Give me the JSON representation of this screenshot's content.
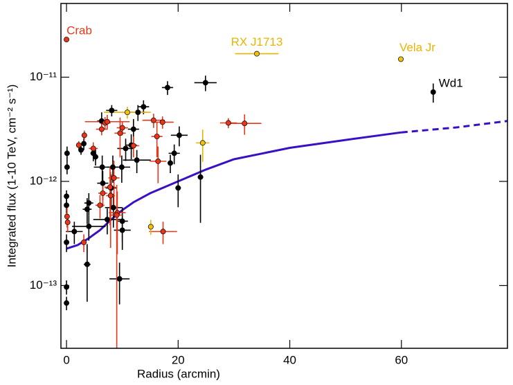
{
  "chart_data": {
    "type": "scatter",
    "xlabel": "Radius (arcmin)",
    "ylabel": "Integrated flux (1-10 TeV, cm⁻² s⁻¹)",
    "xlim": [
      -1,
      79
    ],
    "xticks": [
      0,
      20,
      40,
      60
    ],
    "ylim": [
      2.5e-14,
      5.1e-11
    ],
    "yticks": [
      {
        "value": 1e-13,
        "label": "10⁻¹³"
      },
      {
        "value": 1e-12,
        "label": "10⁻¹²"
      },
      {
        "value": 1e-11,
        "label": "10⁻¹¹"
      }
    ],
    "ylog": true,
    "series": [
      {
        "color": "#000000",
        "x": [
          0.1,
          0.1,
          0,
          0,
          0,
          0,
          0,
          2.6,
          3.1,
          4.0,
          3.7,
          3.7,
          1.4,
          4.0,
          4.8,
          5.2,
          6.3,
          6.4,
          6.5,
          8.1,
          8.3,
          8.0,
          8.4,
          9.5,
          10.0,
          10.0,
          9.9,
          10.6,
          12.0,
          12.8,
          12.6,
          13.8,
          11.6,
          18.1,
          18.6,
          19.3,
          20.2,
          20.0,
          24.9,
          24.0,
          7.3,
          65.7
        ],
        "values": [
          1.86e-12,
          1.37e-12,
          7.2e-13,
          5.9e-13,
          9.7e-14,
          6.8e-14,
          2.6e-13,
          2e-12,
          2.3e-12,
          6.2e-13,
          5.4e-13,
          1.6e-13,
          3.3e-13,
          3.7e-13,
          1.86e-12,
          1.72e-12,
          3.8e-12,
          1.37e-12,
          9.6e-13,
          4.8e-12,
          1.37e-12,
          8.65e-13,
          5.6e-13,
          1.16e-13,
          4.15e-13,
          3.4e-13,
          1.37e-12,
          2.07e-12,
          3.17e-12,
          4.6e-12,
          1.6e-12,
          5.2e-12,
          2.23e-12,
          7.95e-12,
          1.5e-12,
          1.86e-12,
          2.77e-12,
          8.65e-13,
          8.85e-12,
          1.1e-12,
          4.3e-13,
          7.2e-12
        ],
        "xerr": [
          0.2,
          0.2,
          0.2,
          0.2,
          0.2,
          0.2,
          0.2,
          0.3,
          0.3,
          0.8,
          0.8,
          0.6,
          1.5,
          3.0,
          0.5,
          0.5,
          0.8,
          1.5,
          1.0,
          1.0,
          1.0,
          1.0,
          1.5,
          1.8,
          1.0,
          1.5,
          1.5,
          1.5,
          1.0,
          1.5,
          2.5,
          1.0,
          1.0,
          1.0,
          0.5,
          1.0,
          1.5,
          0.5,
          2.0,
          0.5,
          2.5,
          0.2
        ],
        "yerr": [
          3e-13,
          2e-13,
          1e-13,
          1e-13,
          1.5e-14,
          1e-14,
          5e-14,
          2e-13,
          3e-13,
          1.5e-13,
          1.5e-13,
          9e-14,
          8e-14,
          1e-13,
          3e-13,
          3e-13,
          8e-13,
          4e-13,
          3e-13,
          6e-13,
          4e-13,
          3e-13,
          2e-13,
          5e-14,
          1.5e-13,
          1.2e-13,
          4e-13,
          5e-13,
          8e-13,
          8e-13,
          4e-13,
          8e-13,
          6e-13,
          1.2e-12,
          3e-13,
          4e-13,
          6e-13,
          3e-13,
          1.5e-12,
          7e-13,
          1.2e-13,
          1.5e-12
        ]
      },
      {
        "color": "#e8361a",
        "x": [
          0,
          0.1,
          0.2,
          2.2,
          3.2,
          4.8,
          6.3,
          6.9,
          7.3,
          6.0,
          6.5,
          7.8,
          7.9,
          9.1,
          9.0,
          9.6,
          10.0,
          12.0,
          16.2,
          15.6,
          17.2,
          17.3,
          16.4,
          29.0,
          31.9,
          3.1,
          8.5
        ],
        "values": [
          2.3e-11,
          4.6e-13,
          4.05e-13,
          2.23e-12,
          2.77e-12,
          2.07e-12,
          3.17e-12,
          3.64e-12,
          3.74e-12,
          5.9e-13,
          7.7e-13,
          8.8e-13,
          7.3e-13,
          5e-13,
          4.75e-13,
          2.9e-12,
          3.27e-12,
          2.2e-12,
          2.7e-12,
          3.86e-12,
          3.7e-12,
          3.3e-13,
          1.56e-12,
          3.64e-12,
          3.6e-12,
          2.6e-13,
          1.08e-12
        ],
        "xerr": [
          0.1,
          0.2,
          0.2,
          0.3,
          0.3,
          0.8,
          1.0,
          1.0,
          4.0,
          0.8,
          0.8,
          1.0,
          0.8,
          1.5,
          1.0,
          1.0,
          1.0,
          1.0,
          1.0,
          2.0,
          2.0,
          2.5,
          1.5,
          1.5,
          3.0,
          0.5,
          1.0
        ],
        "yerr": [
          1e-12,
          1e-13,
          8e-14,
          2e-13,
          3e-13,
          3e-13,
          4e-13,
          5e-13,
          6e-13,
          1.5e-13,
          2e-13,
          5e-13,
          5e-13,
          3e-13,
          4.5e-13,
          1.2e-12,
          5e-13,
          5e-13,
          1e-12,
          6e-13,
          5e-13,
          8e-14,
          6e-13,
          4e-13,
          8e-13,
          5e-14,
          5e-13
        ]
      },
      {
        "color": "#f2c10f",
        "x": [
          34.1,
          59.9,
          10.9,
          24.4,
          15.1
        ],
        "values": [
          1.68e-11,
          1.49e-11,
          4.6e-12,
          2.34e-12,
          3.67e-13
        ],
        "xerr": [
          3.9,
          0.3,
          4.2,
          1.2,
          0.4
        ],
        "yerr": [
          8e-13,
          5e-13,
          6e-13,
          8e-13,
          6e-14
        ]
      }
    ],
    "curves": [
      {
        "color": "#3b0fc4",
        "dashed": false,
        "x": [
          0,
          2,
          4,
          6,
          8,
          10,
          12,
          15,
          20,
          25,
          30,
          40,
          50,
          60
        ],
        "values": [
          2.26e-13,
          2.45e-13,
          2.85e-13,
          3.4e-13,
          4.3e-13,
          5.3e-13,
          6.3e-13,
          7.7e-13,
          1e-12,
          1.3e-12,
          1.63e-12,
          2.1e-12,
          2.5e-12,
          2.95e-12
        ]
      },
      {
        "color": "#3b0fc4",
        "dashed": true,
        "x": [
          60,
          70,
          79
        ],
        "values": [
          2.95e-12,
          3.3e-12,
          3.8e-12
        ]
      }
    ],
    "annotations": [
      {
        "text": "Crab",
        "x": 0,
        "y": 2.3e-11,
        "color": "#e8361a"
      },
      {
        "text": "RX J1713",
        "x": 34.1,
        "y": 1.68e-11,
        "color": "#e8b400"
      },
      {
        "text": "Vela Jr",
        "x": 59.9,
        "y": 1.49e-11,
        "color": "#e8b400"
      },
      {
        "text": "Wd1",
        "x": 65.7,
        "y": 7.2e-12,
        "color": "#000000"
      }
    ]
  }
}
